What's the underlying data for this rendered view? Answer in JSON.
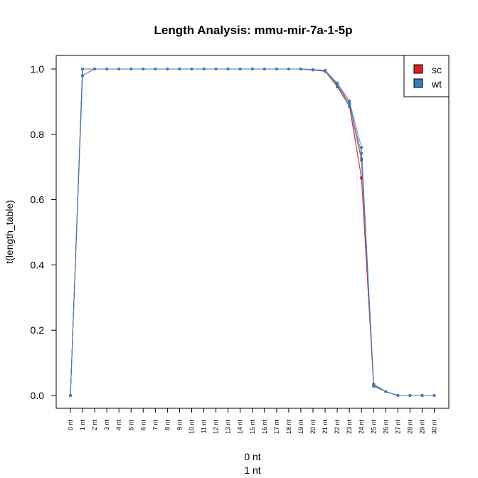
{
  "chart_data": {
    "type": "line",
    "title": "Length Analysis: mmu-mir-7a-1-5p",
    "ylabel": "t(length_table)",
    "xlabel_lines": [
      "0 nt",
      "1 nt"
    ],
    "categories": [
      "0 nt",
      "1 nt",
      "2 nt",
      "3 nt",
      "4 nt",
      "5 nt",
      "6 nt",
      "7 nt",
      "8 nt",
      "9 nt",
      "10 nt",
      "11 nt",
      "12 nt",
      "13 nt",
      "14 nt",
      "15 nt",
      "16 nt",
      "17 nt",
      "18 nt",
      "19 nt",
      "20 nt",
      "21 nt",
      "22 nt",
      "23 nt",
      "24 nt",
      "25 nt",
      "26 nt",
      "27 nt",
      "28 nt",
      "29 nt",
      "30 nt"
    ],
    "yticks": [
      "0.0",
      "0.2",
      "0.4",
      "0.6",
      "0.8",
      "1.0"
    ],
    "ylim": [
      0,
      1
    ],
    "series": [
      {
        "name": "sc",
        "color": "#E41A1C",
        "values": [
          [
            0.0,
            0.0
          ],
          [
            0.98,
            1.0,
            1.0
          ],
          [
            1.0
          ],
          [
            1.0
          ],
          [
            1.0
          ],
          [
            1.0
          ],
          [
            1.0
          ],
          [
            1.0
          ],
          [
            1.0
          ],
          [
            1.0
          ],
          [
            1.0
          ],
          [
            1.0
          ],
          [
            1.0
          ],
          [
            1.0
          ],
          [
            1.0
          ],
          [
            1.0
          ],
          [
            1.0
          ],
          [
            1.0
          ],
          [
            1.0
          ],
          [
            1.0,
            1.0
          ],
          [
            0.998,
            0.997
          ],
          [
            0.995,
            0.993
          ],
          [
            0.955,
            0.95,
            0.945
          ],
          [
            0.9,
            0.892,
            0.885
          ],
          [
            0.725,
            0.668,
            0.665
          ],
          [
            0.035,
            0.03,
            0.028
          ],
          [
            0.012
          ],
          [
            0.0
          ],
          [
            0.0
          ],
          [
            0.0
          ],
          [
            0.0
          ]
        ]
      },
      {
        "name": "wt",
        "color": "#377EB8",
        "values": [
          [
            0.0,
            0.0
          ],
          [
            0.98,
            1.0,
            1.0
          ],
          [
            1.0
          ],
          [
            1.0
          ],
          [
            1.0
          ],
          [
            1.0
          ],
          [
            1.0
          ],
          [
            1.0
          ],
          [
            1.0
          ],
          [
            1.0
          ],
          [
            1.0
          ],
          [
            1.0
          ],
          [
            1.0
          ],
          [
            1.0
          ],
          [
            1.0
          ],
          [
            1.0
          ],
          [
            1.0
          ],
          [
            1.0
          ],
          [
            1.0
          ],
          [
            1.0,
            1.0
          ],
          [
            0.998,
            0.997
          ],
          [
            0.996,
            0.994
          ],
          [
            0.957,
            0.952,
            0.947
          ],
          [
            0.902,
            0.893,
            0.886
          ],
          [
            0.76,
            0.742,
            0.72
          ],
          [
            0.035,
            0.031,
            0.029
          ],
          [
            0.012
          ],
          [
            0.0
          ],
          [
            0.0
          ],
          [
            0.0
          ],
          [
            0.0
          ]
        ]
      }
    ],
    "legend": {
      "position": "top-right",
      "entries": [
        "sc",
        "wt"
      ]
    },
    "grid": false
  }
}
